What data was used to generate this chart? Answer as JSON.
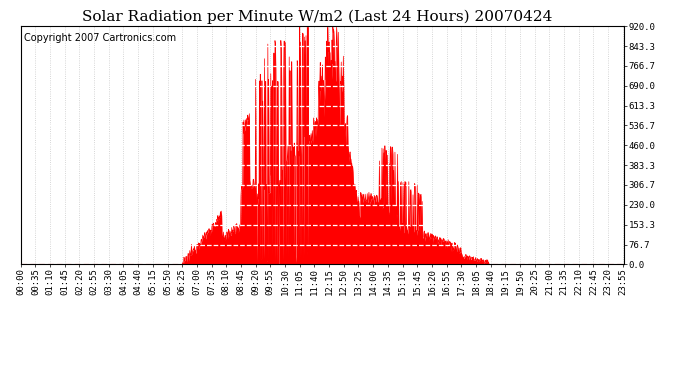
{
  "title": "Solar Radiation per Minute W/m2 (Last 24 Hours) 20070424",
  "copyright": "Copyright 2007 Cartronics.com",
  "background_color": "#ffffff",
  "plot_bg_color": "#ffffff",
  "fill_color": "#ff0000",
  "line_color": "#ff0000",
  "grid_color": "#c8c8c8",
  "ytick_grid_color": "#aaaaaa",
  "dashed_line_color": "#ff0000",
  "ylim": [
    0.0,
    920.0
  ],
  "yticks": [
    0.0,
    76.7,
    153.3,
    230.0,
    306.7,
    383.3,
    460.0,
    536.7,
    613.3,
    690.0,
    766.7,
    843.3,
    920.0
  ],
  "num_minutes": 1440,
  "title_fontsize": 11,
  "tick_fontsize": 6.5,
  "copyright_fontsize": 7,
  "label_interval": 35
}
